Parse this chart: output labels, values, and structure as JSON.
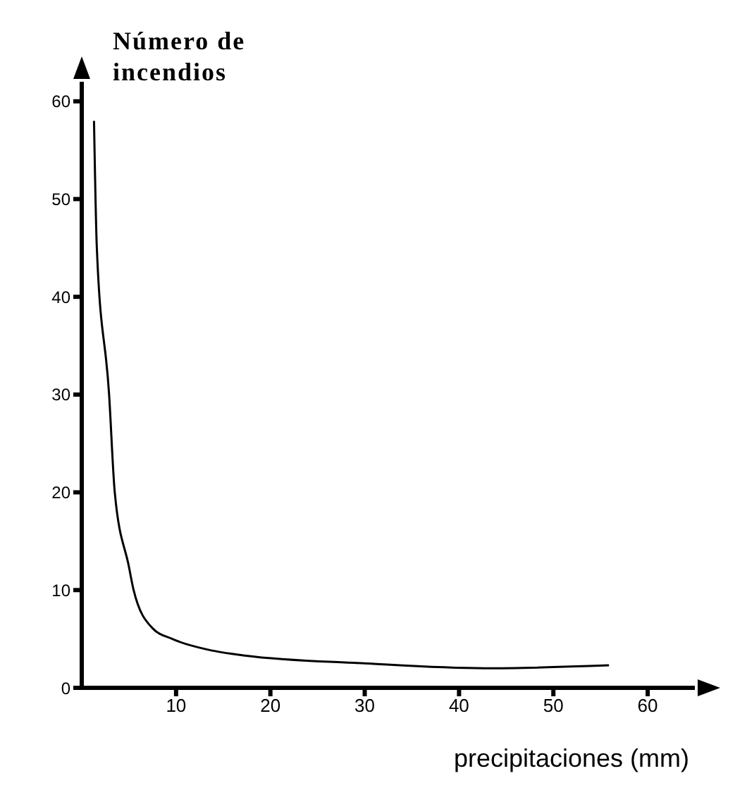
{
  "chart_data": {
    "type": "line",
    "xlabel": "precipitaciones (mm)",
    "ylabel": "Número de incendios",
    "x": [
      1.3,
      1.6,
      2.9,
      3.5,
      5,
      5.5,
      7.5,
      9.6,
      13.4,
      17.3,
      30,
      42.7,
      55.9
    ],
    "series": [
      {
        "color": "#000000",
        "values": [
          58,
          45,
          30,
          20,
          12.4,
          10,
          6.1,
          5,
          3.9,
          3.3,
          2.5,
          2,
          2.3
        ]
      }
    ],
    "xlim": [
      0,
      65
    ],
    "xticks": [
      10,
      20,
      30,
      40,
      50,
      60
    ],
    "ylim": [
      0,
      62
    ],
    "yticks": [
      0,
      10,
      20,
      30,
      40,
      50,
      60
    ],
    "grid": false,
    "legend": false,
    "marker": "none",
    "line_style": "solid"
  }
}
